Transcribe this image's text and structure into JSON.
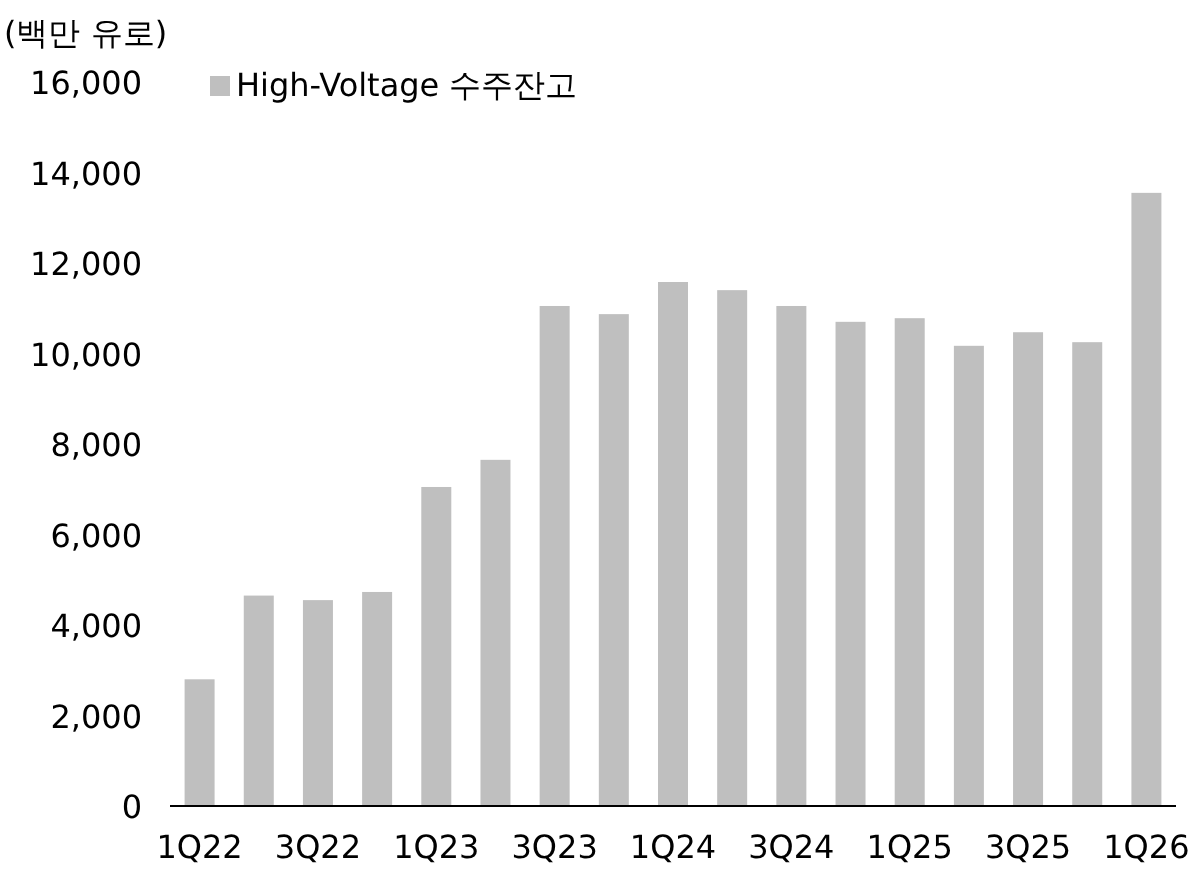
{
  "chart_data": {
    "type": "bar",
    "ylabel": "(백만 유로)",
    "categories": [
      "1Q22",
      null,
      "3Q22",
      null,
      "1Q23",
      null,
      "3Q23",
      null,
      "1Q24",
      null,
      "3Q24",
      null,
      "1Q25",
      null,
      "3Q25",
      null,
      "1Q26"
    ],
    "series": [
      {
        "name": "High-Voltage 수주잔고",
        "color": "#bfbfbf",
        "values": [
          2800,
          4650,
          4550,
          4730,
          7050,
          7650,
          11050,
          10870,
          11580,
          11400,
          11050,
          10700,
          10780,
          10170,
          10470,
          10250,
          13550
        ]
      }
    ],
    "ylim": [
      0,
      16000
    ],
    "yticks": [
      0,
      {
        "value": 2000,
        "label": "2,000"
      },
      {
        "value": 4000,
        "label": "4,000"
      },
      {
        "value": 6000,
        "label": "6,000"
      },
      {
        "value": 8000,
        "label": "8,000"
      },
      {
        "value": 10000,
        "label": "10,000"
      },
      {
        "value": 12000,
        "label": "12,000"
      },
      {
        "value": 14000,
        "label": "14,000"
      },
      {
        "value": 16000,
        "label": "16,000"
      }
    ],
    "legend": "top left",
    "grid": false
  }
}
